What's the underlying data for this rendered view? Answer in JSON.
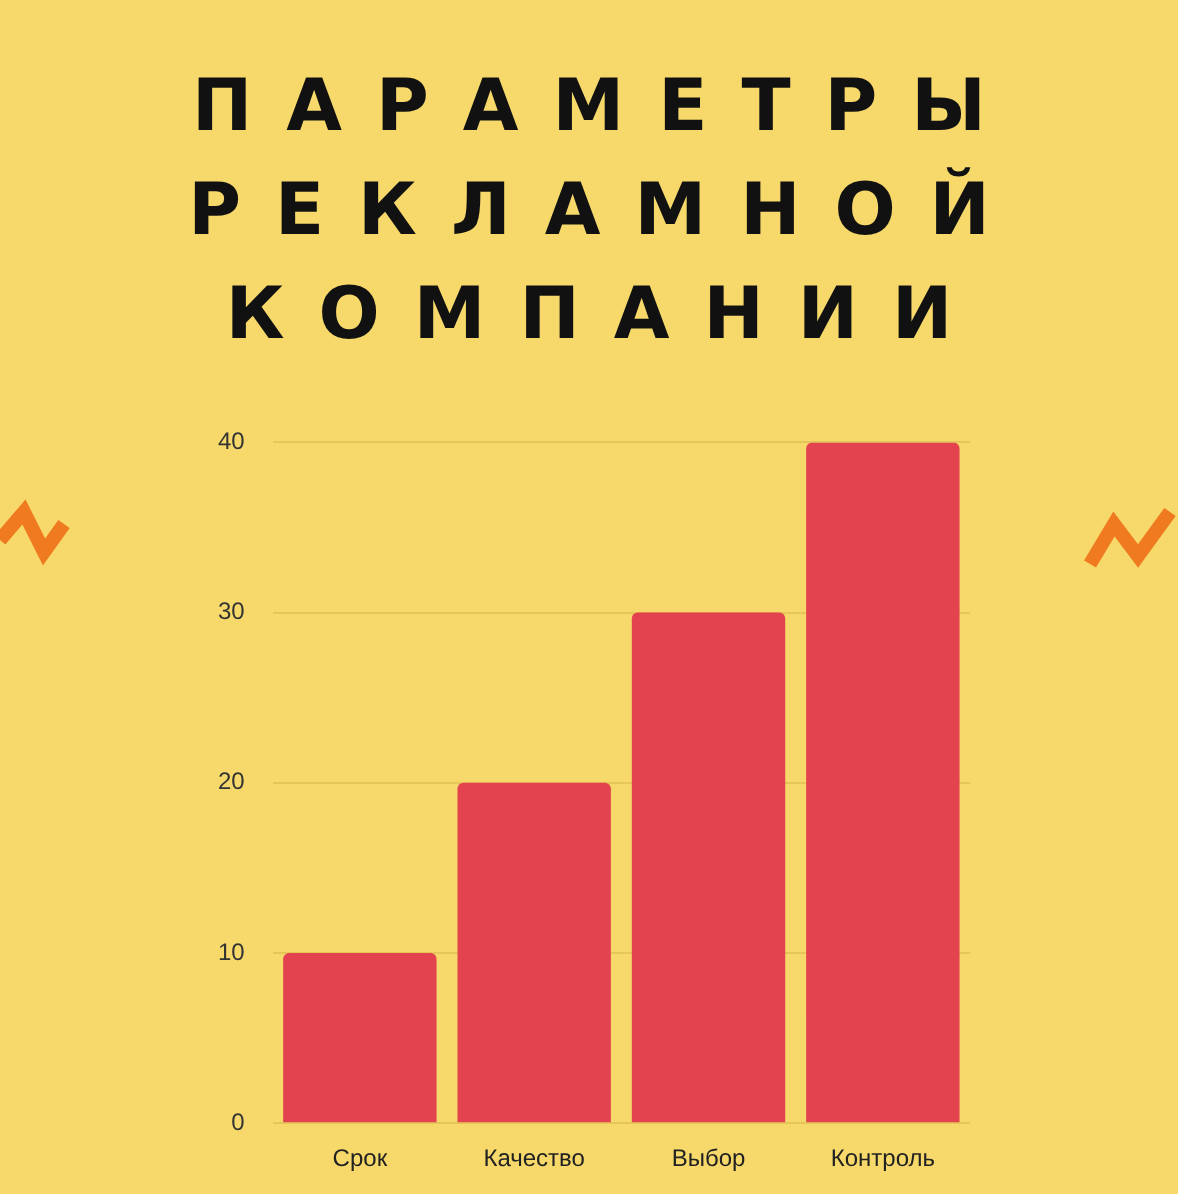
{
  "chart_data": {
    "type": "bar",
    "title": "ПАРАМЕТРЫ РЕКЛАМНОЙ КОМПАНИИ",
    "categories": [
      "Срок",
      "Качество",
      "Выбор",
      "Контроль"
    ],
    "values": [
      10,
      20,
      30,
      40
    ],
    "color": "#e3434f",
    "ylim": [
      0,
      40
    ],
    "yticks": [
      0,
      10,
      20,
      30,
      40
    ],
    "grid": "y"
  }
}
